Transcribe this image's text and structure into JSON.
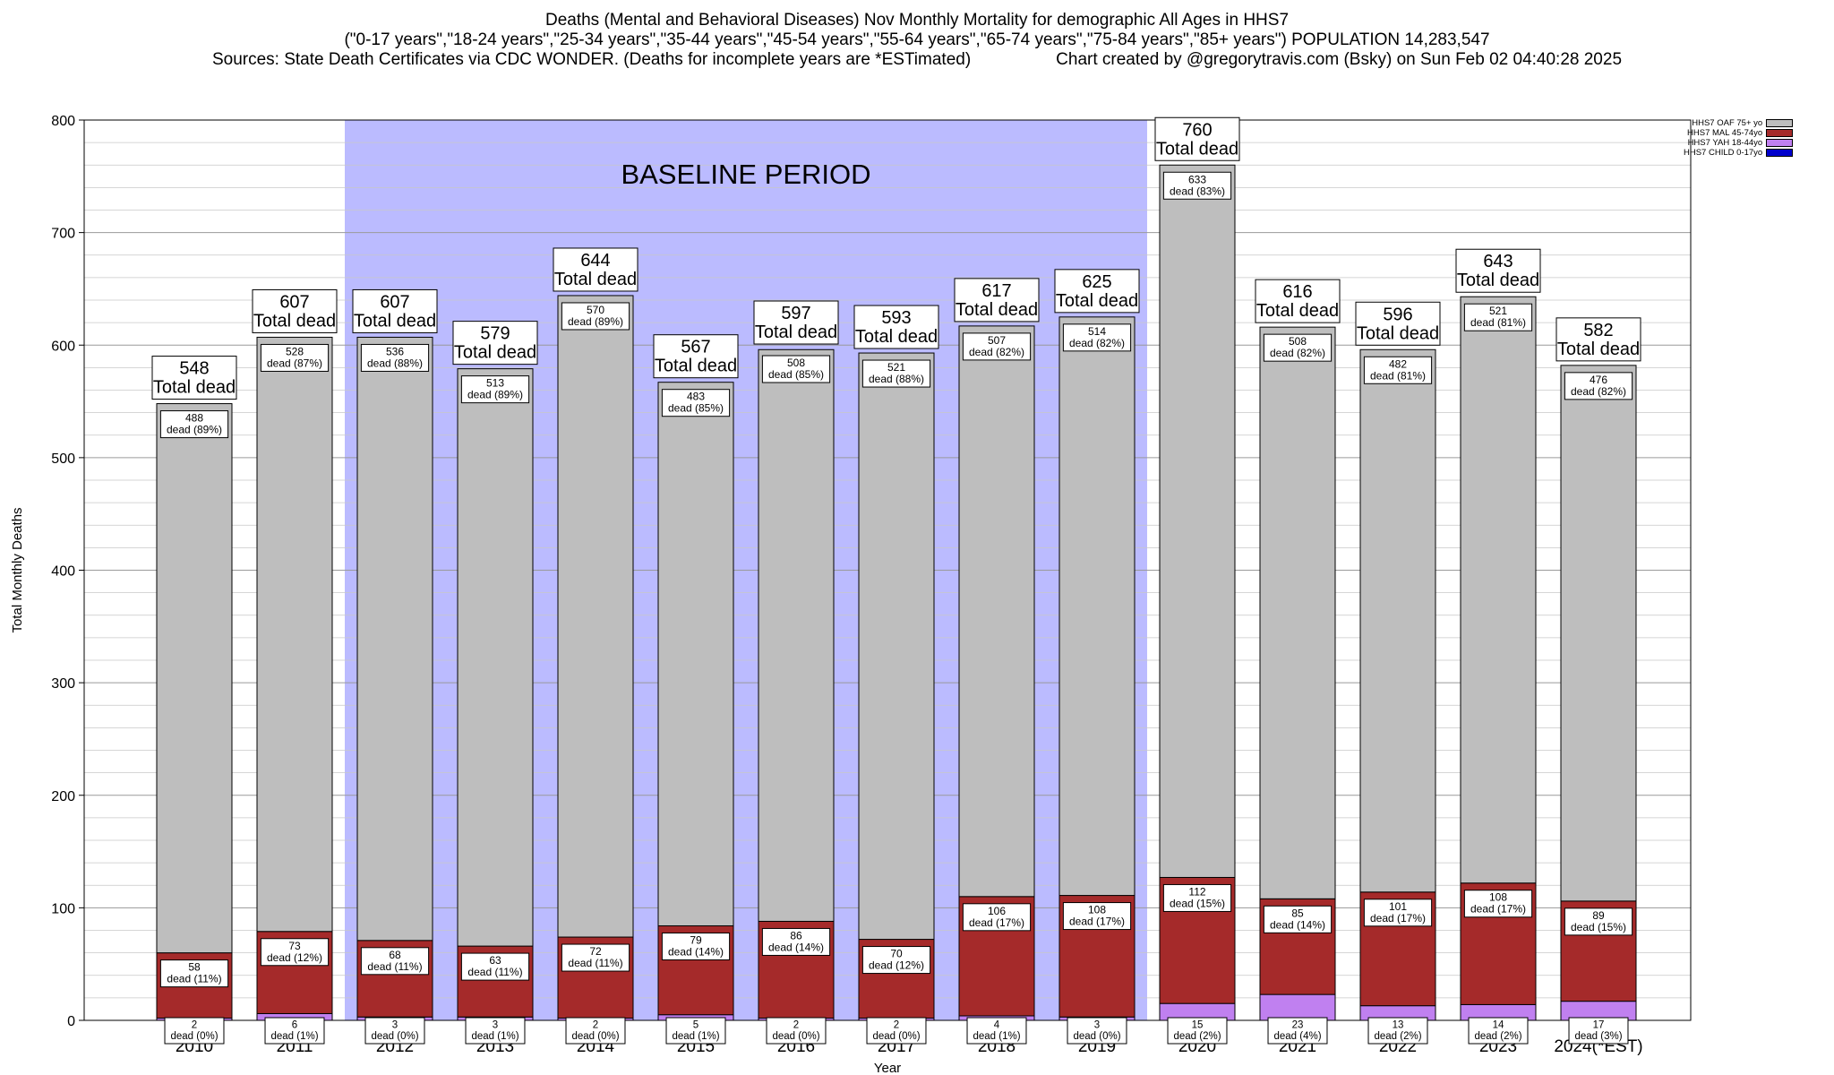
{
  "chart_data": {
    "type": "bar",
    "stacked": true,
    "title": "Deaths (Mental and Behavioral Diseases) Nov Monthly Mortality for demographic All Ages in HHS7",
    "subtitle": "(\"0-17 years\",\"18-24 years\",\"25-34 years\",\"35-44 years\",\"45-54 years\",\"55-64 years\",\"65-74 years\",\"75-84 years\",\"85+ years\") POPULATION 14,283,547",
    "sources": "Sources: State Death Certificates via CDC WONDER. (Deaths for incomplete years are *ESTimated)",
    "credit": "Chart created by @gregorytravis.com (Bsky) on Sun Feb 02 04:40:28 2025",
    "xlabel": "Year",
    "ylabel": "Total Monthly Deaths",
    "ylim": [
      0,
      800
    ],
    "y_ticks": [
      0,
      100,
      200,
      300,
      400,
      500,
      600,
      700,
      800
    ],
    "grid": true,
    "legend_position": "top-right",
    "total_label_suffix": "Total dead",
    "baseline_label": "BASELINE PERIOD",
    "baseline_range": [
      "2012",
      "2019"
    ],
    "categories": [
      "2010",
      "2011",
      "2012",
      "2013",
      "2014",
      "2015",
      "2016",
      "2017",
      "2018",
      "2019",
      "2020",
      "2021",
      "2022",
      "2023",
      "2024(*EST)"
    ],
    "totals": [
      548,
      607,
      607,
      579,
      644,
      567,
      597,
      593,
      617,
      625,
      760,
      616,
      596,
      643,
      582
    ],
    "series": [
      {
        "name": "HHS7 CHILD 0-17yo",
        "color": "#0000cc",
        "values": [
          0,
          0,
          0,
          0,
          0,
          0,
          0,
          0,
          0,
          0,
          0,
          0,
          0,
          0,
          0
        ],
        "labels": []
      },
      {
        "name": "HHS7 YAH 18-44yo",
        "color": "#c080f0",
        "values": [
          2,
          6,
          3,
          3,
          2,
          5,
          2,
          2,
          4,
          3,
          15,
          23,
          13,
          14,
          17
        ],
        "labels": [
          "2\ndead (0%)",
          "6\ndead (1%)",
          "3\ndead (0%)",
          "3\ndead (1%)",
          "2\ndead (0%)",
          "5\ndead (1%)",
          "2\ndead (0%)",
          "2\ndead (0%)",
          "4\ndead (1%)",
          "3\ndead (0%)",
          "15\ndead (2%)",
          "23\ndead (4%)",
          "13\ndead (2%)",
          "14\ndead (2%)",
          "17\ndead (3%)"
        ]
      },
      {
        "name": "HHS7 MAL 45-74yo",
        "color": "#a52a2a",
        "values": [
          58,
          73,
          68,
          63,
          72,
          79,
          86,
          70,
          106,
          108,
          112,
          85,
          101,
          108,
          89
        ],
        "labels": [
          "58\ndead (11%)",
          "73\ndead (12%)",
          "68\ndead (11%)",
          "63\ndead (11%)",
          "72\ndead (11%)",
          "79\ndead (14%)",
          "86\ndead (14%)",
          "70\ndead (12%)",
          "106\ndead (17%)",
          "108\ndead (17%)",
          "112\ndead (15%)",
          "85\ndead (14%)",
          "101\ndead (17%)",
          "108\ndead (17%)",
          "89\ndead (15%)"
        ]
      },
      {
        "name": "HHS7 OAF 75+ yo",
        "color": "#bebebe",
        "values": [
          488,
          528,
          536,
          513,
          570,
          483,
          508,
          521,
          507,
          514,
          633,
          508,
          482,
          521,
          476
        ],
        "labels": [
          "488\ndead (89%)",
          "528\ndead (87%)",
          "536\ndead (88%)",
          "513\ndead (89%)",
          "570\ndead (89%)",
          "483\ndead (85%)",
          "508\ndead (85%)",
          "521\ndead (88%)",
          "507\ndead (82%)",
          "514\ndead (82%)",
          "633\ndead (83%)",
          "508\ndead (82%)",
          "482\ndead (81%)",
          "521\ndead (81%)",
          "476\ndead (82%)"
        ]
      }
    ],
    "legend_entries": [
      "HHS7 OAF 75+ yo",
      "HHS7 MAL 45-74yo",
      "HHS7 YAH 18-44yo",
      "HHS7 CHILD 0-17yo"
    ],
    "legend_colors": [
      "#bebebe",
      "#a52a2a",
      "#c080f0",
      "#0000cc"
    ],
    "baseline_color": "#bbbbff"
  }
}
